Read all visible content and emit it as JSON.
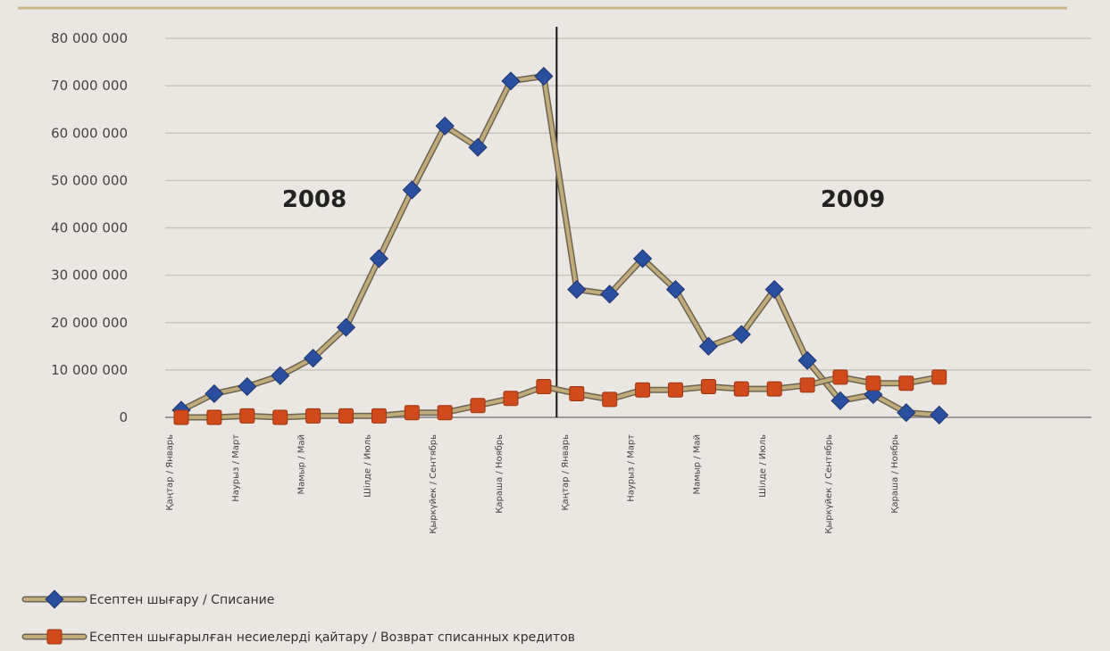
{
  "chart_data": {
    "type": "line",
    "title": "",
    "xlabel": "",
    "ylabel": "",
    "ylim": [
      0,
      80000000
    ],
    "y_ticks": [
      0,
      10000000,
      20000000,
      30000000,
      40000000,
      50000000,
      60000000,
      70000000,
      80000000
    ],
    "y_tick_labels": [
      "0",
      "10 000 000",
      "20 000 000",
      "30 000 000",
      "40 000 000",
      "50 000 000",
      "60 000 000",
      "70 000 000",
      "80 000 000"
    ],
    "x_tick_labels": [
      "Қаңтар / Январь",
      "Наурыз / Март",
      "Мамыр / Май",
      "Шілде / Июль",
      "Қыркүйек / Сентябрь",
      "Қараша / Ноябрь",
      "Қаңтар / Январь",
      "Наурыз / Март",
      "Мамыр / Май",
      "Шілде / Июль",
      "Қыркүйек / Сентябрь",
      "Қараша / Ноябрь"
    ],
    "year_labels": [
      "2008",
      "2009"
    ],
    "grid": true,
    "legend_position": "bottom-left",
    "series": [
      {
        "name": "Есептен шығару / Списание",
        "color": "#2a4f9e",
        "marker": "diamond",
        "values": [
          1500000,
          5000000,
          6500000,
          8800000,
          12500000,
          19000000,
          33500000,
          48000000,
          61500000,
          57000000,
          71000000,
          72000000,
          27000000,
          26000000,
          33500000,
          27000000,
          15000000,
          17500000,
          27000000,
          12000000,
          3500000,
          4800000,
          1000000,
          500000
        ]
      },
      {
        "name": "Есептен шығарылған несиелерді қайтару / Возврат списанных кредитов",
        "color": "#d14a1c",
        "marker": "square",
        "values": [
          0,
          0,
          300000,
          0,
          300000,
          300000,
          300000,
          1000000,
          1000000,
          2500000,
          4000000,
          6500000,
          5000000,
          3800000,
          5800000,
          5800000,
          6500000,
          6000000,
          6000000,
          6800000,
          8500000,
          7200000,
          7200000,
          8500000
        ]
      }
    ]
  }
}
